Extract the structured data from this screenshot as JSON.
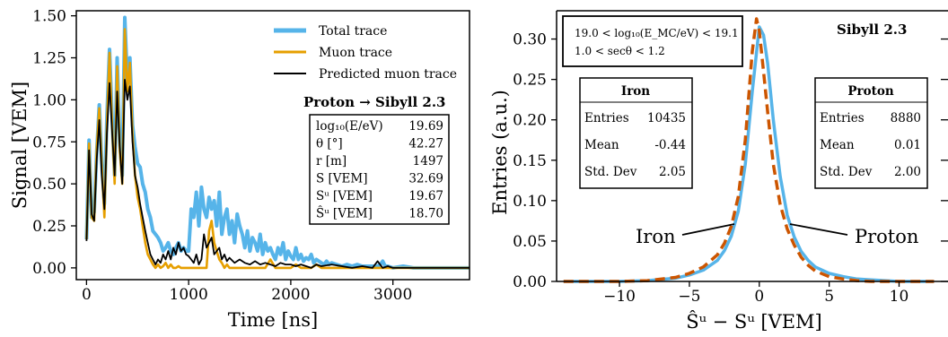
{
  "chart_data": [
    {
      "type": "line",
      "xlabel": "Time [ns]",
      "ylabel": "Signal [VEM]",
      "xlim": [
        -100,
        3750
      ],
      "ylim": [
        -0.07,
        1.53
      ],
      "xticks": [
        "0",
        "1000",
        "2000",
        "3000"
      ],
      "xtick_values": [
        0,
        1000,
        2000,
        3000
      ],
      "yticks": [
        "0.00",
        "0.25",
        "0.50",
        "0.75",
        "1.00",
        "1.25",
        "1.50"
      ],
      "ytick_values": [
        0,
        0.25,
        0.5,
        0.75,
        1.0,
        1.25,
        1.5
      ],
      "grid": false,
      "legend_placement": "top-right",
      "series": [
        {
          "name": "Total trace",
          "color": "#56B4E9",
          "x": [
            0,
            25,
            50,
            75,
            100,
            125,
            150,
            175,
            200,
            225,
            250,
            275,
            300,
            325,
            350,
            375,
            400,
            425,
            450,
            475,
            500,
            525,
            550,
            575,
            600,
            625,
            650,
            675,
            700,
            725,
            750,
            775,
            800,
            825,
            850,
            875,
            900,
            925,
            950,
            975,
            1000,
            1025,
            1050,
            1075,
            1100,
            1125,
            1150,
            1175,
            1200,
            1225,
            1250,
            1275,
            1300,
            1325,
            1350,
            1375,
            1400,
            1425,
            1450,
            1475,
            1500,
            1525,
            1550,
            1575,
            1600,
            1625,
            1650,
            1675,
            1700,
            1725,
            1750,
            1775,
            1800,
            1825,
            1850,
            1875,
            1900,
            1925,
            1950,
            1975,
            2000,
            2025,
            2050,
            2075,
            2100,
            2125,
            2150,
            2175,
            2200,
            2225,
            2250,
            2275,
            2300,
            2325,
            2350,
            2375,
            2400,
            2450,
            2500,
            2550,
            2600,
            2650,
            2700,
            2750,
            2800,
            2850,
            2875,
            2900,
            2925,
            2950,
            3000,
            3100,
            3200,
            3300,
            3400,
            3500,
            3600,
            3750
          ],
          "y": [
            0.17,
            0.76,
            0.3,
            0.33,
            0.7,
            0.97,
            0.62,
            0.38,
            0.9,
            1.3,
            0.9,
            0.55,
            1.25,
            0.75,
            0.55,
            1.49,
            1.1,
            1.25,
            0.85,
            0.72,
            0.62,
            0.6,
            0.5,
            0.45,
            0.35,
            0.3,
            0.22,
            0.2,
            0.18,
            0.15,
            0.1,
            0.12,
            0.15,
            0.1,
            0.08,
            0.12,
            0.15,
            0.1,
            0.12,
            0.1,
            0.1,
            0.35,
            0.3,
            0.45,
            0.25,
            0.48,
            0.35,
            0.3,
            0.42,
            0.35,
            0.4,
            0.25,
            0.45,
            0.2,
            0.3,
            0.35,
            0.2,
            0.28,
            0.15,
            0.32,
            0.25,
            0.2,
            0.12,
            0.22,
            0.1,
            0.18,
            0.15,
            0.1,
            0.2,
            0.08,
            0.15,
            0.1,
            0.12,
            0.08,
            0.05,
            0.12,
            0.08,
            0.15,
            0.05,
            0.1,
            0.07,
            0.05,
            0.12,
            0.05,
            0.08,
            0.04,
            0.06,
            0.05,
            0.08,
            0.03,
            0.05,
            0.04,
            0.03,
            0.02,
            0.04,
            0.02,
            0.03,
            0.02,
            0.01,
            0.02,
            0.01,
            0.02,
            0.01,
            0.01,
            0.01,
            0.01,
            0.02,
            0.04,
            0.01,
            0.01,
            0.0,
            0.01,
            0.0,
            0.0,
            0.0,
            0.0,
            0.0,
            0.0
          ]
        },
        {
          "name": "Muon trace",
          "color": "#E69F00",
          "x": [
            0,
            25,
            50,
            75,
            100,
            125,
            150,
            175,
            200,
            225,
            250,
            275,
            300,
            325,
            350,
            375,
            400,
            425,
            450,
            475,
            500,
            525,
            550,
            575,
            600,
            625,
            650,
            675,
            700,
            725,
            750,
            775,
            800,
            825,
            850,
            875,
            900,
            925,
            950,
            975,
            1000,
            1025,
            1050,
            1075,
            1100,
            1125,
            1150,
            1175,
            1200,
            1225,
            1250,
            1275,
            1300,
            1325,
            1350,
            1375,
            1400,
            1425,
            1450,
            1475,
            1500,
            1525,
            1550,
            1575,
            1600,
            1650,
            1700,
            1750,
            1800,
            1850,
            1900,
            1950,
            2000,
            2050,
            2100,
            2150,
            2200,
            2250,
            2300,
            2400,
            2500,
            2600,
            2700,
            2800,
            2900,
            3000,
            3200,
            3400,
            3600,
            3750
          ],
          "y": [
            0.17,
            0.74,
            0.3,
            0.28,
            0.72,
            0.95,
            0.6,
            0.3,
            0.85,
            1.28,
            0.85,
            0.5,
            1.2,
            0.7,
            0.5,
            1.42,
            1.05,
            1.22,
            0.8,
            0.55,
            0.42,
            0.35,
            0.25,
            0.15,
            0.08,
            0.05,
            0.02,
            0.0,
            0.02,
            0.0,
            0.01,
            0.03,
            0.0,
            0.02,
            0.0,
            0.0,
            0.01,
            0.0,
            0.0,
            0.0,
            0.0,
            0.0,
            0.0,
            0.0,
            0.0,
            0.0,
            0.0,
            0.0,
            0.22,
            0.28,
            0.15,
            0.1,
            0.05,
            0.03,
            0.0,
            0.02,
            0.0,
            0.0,
            0.0,
            0.0,
            0.0,
            0.0,
            0.0,
            0.0,
            0.0,
            0.0,
            0.0,
            0.0,
            0.05,
            0.0,
            0.0,
            0.0,
            0.0,
            0.02,
            0.0,
            0.0,
            0.0,
            0.02,
            0.0,
            0.0,
            0.0,
            0.0,
            0.0,
            0.0,
            0.0,
            0.0,
            0.0,
            0.0,
            0.0,
            0.0
          ]
        },
        {
          "name": "Predicted muon trace",
          "color": "#000000",
          "x": [
            0,
            25,
            50,
            75,
            100,
            125,
            150,
            175,
            200,
            225,
            250,
            275,
            300,
            325,
            350,
            375,
            400,
            425,
            450,
            475,
            500,
            525,
            550,
            575,
            600,
            625,
            650,
            675,
            700,
            725,
            750,
            775,
            800,
            825,
            850,
            875,
            900,
            925,
            950,
            975,
            1000,
            1025,
            1050,
            1075,
            1100,
            1125,
            1150,
            1175,
            1200,
            1225,
            1250,
            1275,
            1300,
            1325,
            1350,
            1375,
            1400,
            1450,
            1500,
            1550,
            1600,
            1650,
            1700,
            1750,
            1800,
            1850,
            1900,
            1950,
            2000,
            2050,
            2100,
            2150,
            2200,
            2250,
            2300,
            2400,
            2500,
            2600,
            2700,
            2800,
            2850,
            2900,
            2950,
            3000,
            3200,
            3400,
            3600,
            3750
          ],
          "y": [
            0.16,
            0.7,
            0.32,
            0.28,
            0.65,
            0.88,
            0.55,
            0.35,
            0.8,
            1.1,
            0.82,
            0.55,
            1.05,
            0.72,
            0.5,
            1.12,
            1.0,
            1.08,
            0.75,
            0.55,
            0.48,
            0.38,
            0.3,
            0.22,
            0.15,
            0.08,
            0.05,
            0.02,
            0.05,
            0.03,
            0.08,
            0.05,
            0.1,
            0.05,
            0.12,
            0.08,
            0.15,
            0.1,
            0.12,
            0.08,
            0.07,
            0.05,
            0.03,
            0.08,
            0.02,
            0.05,
            0.2,
            0.12,
            0.15,
            0.18,
            0.08,
            0.1,
            0.12,
            0.05,
            0.08,
            0.04,
            0.06,
            0.03,
            0.05,
            0.03,
            0.02,
            0.04,
            0.02,
            0.03,
            0.02,
            0.01,
            0.03,
            0.02,
            0.02,
            0.01,
            0.02,
            0.01,
            0.0,
            0.02,
            0.01,
            0.02,
            0.01,
            0.0,
            0.01,
            0.0,
            0.04,
            0.0,
            0.01,
            0.0,
            0.0,
            0.0,
            0.0,
            0.0
          ]
        }
      ],
      "annotations": {
        "title": "Proton → Sibyll 2.3",
        "table": [
          {
            "label": "log₁₀(E/eV)",
            "value": "19.69"
          },
          {
            "label": "θ [°]",
            "value": "42.27"
          },
          {
            "label": "r [m]",
            "value": "1497"
          },
          {
            "label": "S [VEM]",
            "value": "32.69"
          },
          {
            "label": "Sᵘ [VEM]",
            "value": "19.67"
          },
          {
            "label": "Ŝᵘ [VEM]",
            "value": "18.70"
          }
        ]
      }
    },
    {
      "type": "line",
      "xlabel": "Ŝᵘ − Sᵘ [VEM]",
      "ylabel": "Entries (a.u.)",
      "xlim": [
        -14.5,
        13.5
      ],
      "ylim": [
        0,
        0.335
      ],
      "xticks": [
        "−10",
        "−5",
        "0",
        "5",
        "10"
      ],
      "xtick_values": [
        -10,
        -5,
        0,
        5,
        10
      ],
      "yticks": [
        "0.00",
        "0.05",
        "0.10",
        "0.15",
        "0.20",
        "0.25",
        "0.30"
      ],
      "ytick_values": [
        0,
        0.05,
        0.1,
        0.15,
        0.2,
        0.25,
        0.3
      ],
      "grid": false,
      "series": [
        {
          "name": "Proton",
          "color": "#56B4E9",
          "x": [
            -14,
            -10,
            -8,
            -6,
            -5,
            -4,
            -3,
            -2.5,
            -2,
            -1.5,
            -1,
            -0.5,
            0,
            0.3,
            0.6,
            1,
            1.5,
            2,
            2.5,
            3,
            3.5,
            4,
            5,
            6,
            7,
            8,
            10,
            12.5
          ],
          "y": [
            0.0,
            0.0,
            0.001,
            0.004,
            0.008,
            0.014,
            0.026,
            0.038,
            0.056,
            0.087,
            0.145,
            0.235,
            0.315,
            0.305,
            0.27,
            0.2,
            0.13,
            0.082,
            0.055,
            0.037,
            0.026,
            0.018,
            0.01,
            0.006,
            0.003,
            0.002,
            0.0,
            0.0
          ]
        },
        {
          "name": "Iron",
          "color": "#CC5500",
          "x": [
            -14,
            -10,
            -8,
            -6,
            -5,
            -4,
            -3,
            -2.5,
            -2,
            -1.5,
            -1,
            -0.5,
            -0.2,
            0,
            0.3,
            0.6,
            1,
            1.5,
            2,
            2.5,
            3,
            3.5,
            4,
            5,
            6,
            7,
            8,
            10,
            12.5
          ],
          "y": [
            0.0,
            0.0,
            0.001,
            0.005,
            0.01,
            0.018,
            0.033,
            0.047,
            0.068,
            0.105,
            0.175,
            0.285,
            0.325,
            0.31,
            0.26,
            0.21,
            0.145,
            0.095,
            0.065,
            0.045,
            0.03,
            0.02,
            0.013,
            0.006,
            0.003,
            0.001,
            0.0,
            0.0,
            0.0
          ]
        }
      ],
      "annotations": {
        "box_line1": "19.0 < log₁₀(E_MC/eV) < 19.1",
        "box_line2": "1.0 < secθ < 1.2",
        "model": "Sibyll 2.3",
        "iron_label": "Iron",
        "proton_label": "Proton",
        "iron_stats": {
          "title": "Iron",
          "entries_label": "Entries",
          "entries": "10435",
          "mean_label": "Mean",
          "mean": "-0.44",
          "std_label": "Std. Dev",
          "std": "2.05"
        },
        "proton_stats": {
          "title": "Proton",
          "entries_label": "Entries",
          "entries": "8880",
          "mean_label": "Mean",
          "mean": "0.01",
          "std_label": "Std. Dev",
          "std": "2.00"
        }
      }
    }
  ]
}
